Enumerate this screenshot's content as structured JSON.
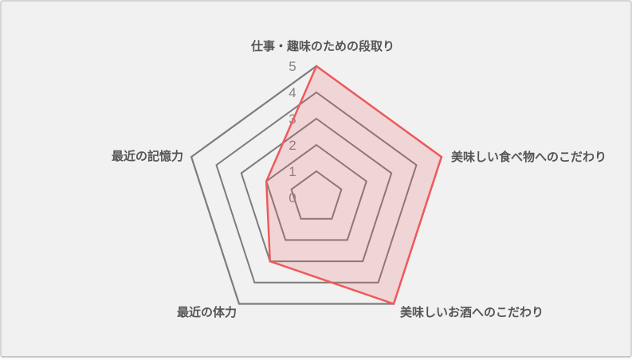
{
  "chart_card": {
    "background": "#f1f1f1",
    "border_color": "#d5d5d5"
  },
  "chart_data": {
    "type": "radar",
    "title": "",
    "axes": [
      {
        "label": "仕事・趣味のための段取り",
        "value": 5
      },
      {
        "label": "美味しい食べ物へのこだわり",
        "value": 5
      },
      {
        "label": "美味しいお酒へのこだわり",
        "value": 5
      },
      {
        "label": "最近の体力",
        "value": 3
      },
      {
        "label": "最近の記憶力",
        "value": 2
      }
    ],
    "scale": {
      "min": 0,
      "max": 5,
      "step": 1,
      "tick_labels": [
        "5",
        "4",
        "3",
        "2",
        "1",
        "0"
      ]
    },
    "legend": "none",
    "grid": {
      "shape": "pentagon",
      "rings": [
        1,
        2,
        3,
        4,
        5
      ],
      "radial_spokes": false
    },
    "colors": {
      "series_stroke": "#ee5a5c",
      "series_fill": "rgba(238,90,92,0.18)",
      "grid_line": "#7c7c7c",
      "tick_text": "#848484",
      "axis_label_text": "#555555"
    }
  }
}
